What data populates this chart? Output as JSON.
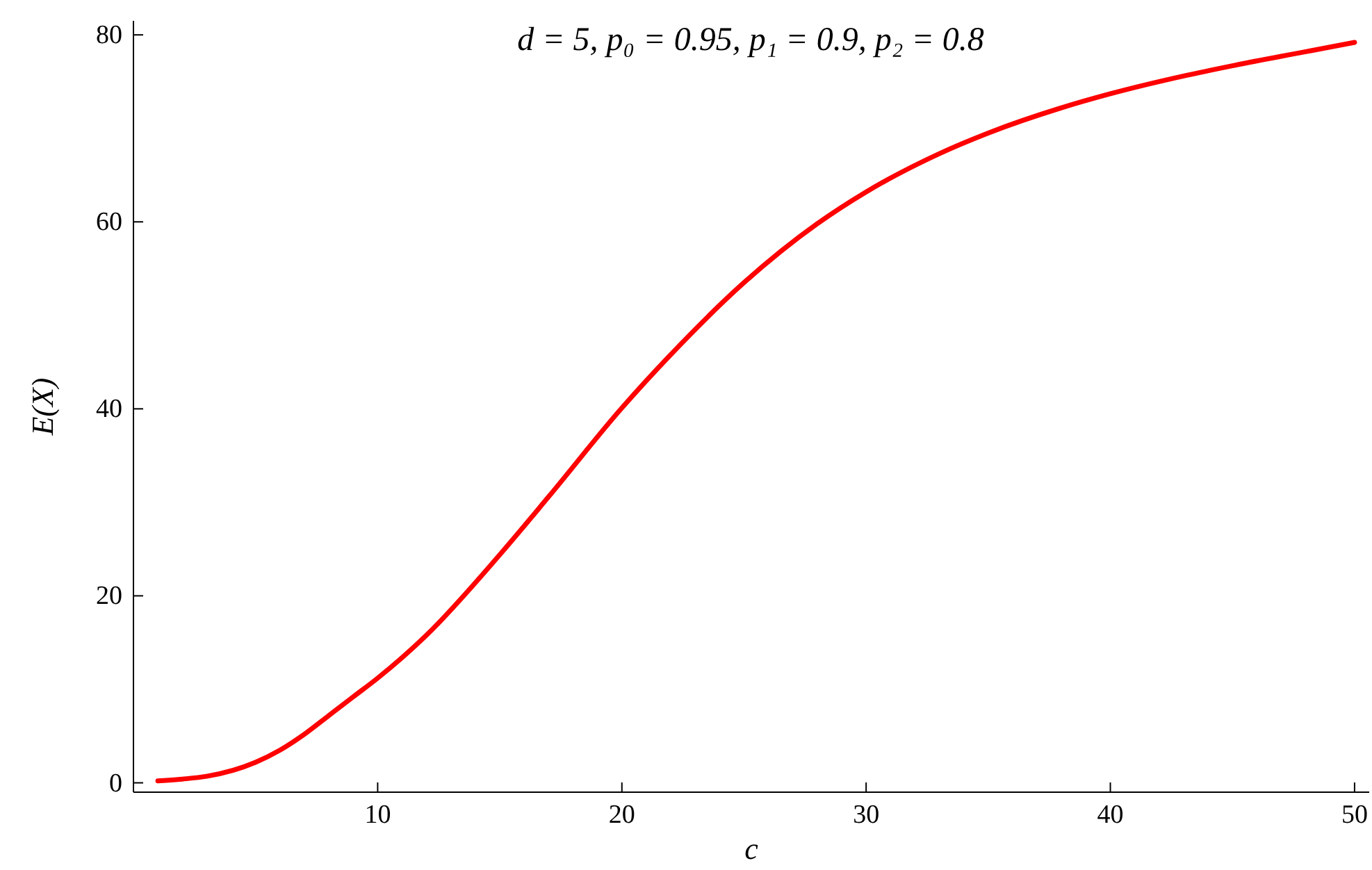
{
  "chart_data": {
    "type": "line",
    "title": "d = 5, p₀ = 0.95, p₁ = 0.9, p₂ = 0.8",
    "xlabel": "c",
    "ylabel": "E(X)",
    "xlim": [
      0,
      50.6
    ],
    "ylim": [
      -1,
      81.5
    ],
    "xticks": [
      10,
      20,
      30,
      40,
      50
    ],
    "yticks": [
      0,
      20,
      40,
      60,
      80
    ],
    "marker": "none",
    "line_style": "solid",
    "series": [
      {
        "color": "#ff0000",
        "x": [
          1,
          2,
          3,
          5,
          6,
          7,
          8,
          9,
          10,
          12,
          15,
          17,
          20,
          22,
          25,
          28,
          30,
          33,
          35,
          38,
          40,
          43,
          45,
          48,
          50
        ],
        "values": [
          0.2,
          0.4,
          0.7,
          2.2,
          3.5,
          5.2,
          7.2,
          9.2,
          11.2,
          15.8,
          24.4,
          30.6,
          40.1,
          45.8,
          53.5,
          59.8,
          63.2,
          67.3,
          69.5,
          72.2,
          73.7,
          75.6,
          76.7,
          78.2,
          79.2
        ]
      }
    ]
  }
}
